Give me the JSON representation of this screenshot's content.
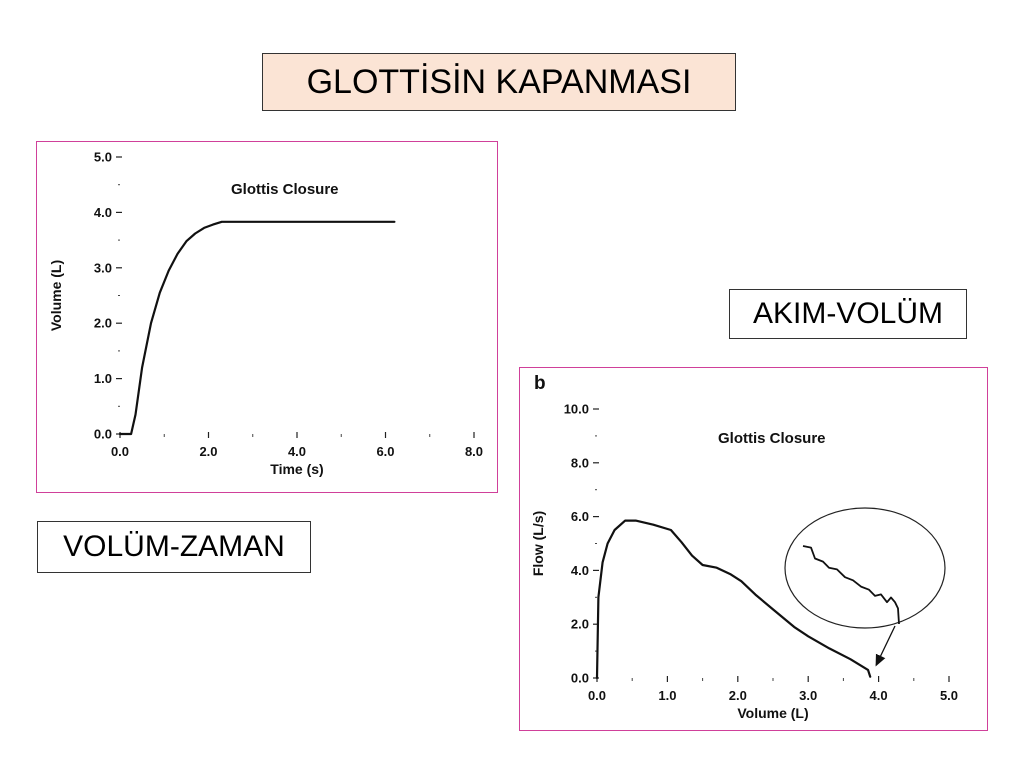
{
  "slide": {
    "title": "GLOTTİSİN KAPANMASI",
    "label_flow_volume": "AKIM-VOLÜM",
    "label_volume_time": "VOLÜM-ZAMAN"
  },
  "chart_data": [
    {
      "type": "line",
      "title": "Glottis Closure",
      "xlabel": "Time (s)",
      "ylabel": "Volume (L)",
      "xlim": [
        0,
        8
      ],
      "ylim": [
        0,
        5
      ],
      "x_ticks": [
        "0.0",
        "2.0",
        "4.0",
        "6.0",
        "8.0"
      ],
      "y_ticks": [
        "0.0",
        "1.0",
        "2.0",
        "3.0",
        "4.0",
        "5.0"
      ],
      "series": [
        {
          "points": [
            [
              0.0,
              0.0
            ],
            [
              0.25,
              0.0
            ],
            [
              0.35,
              0.35
            ],
            [
              0.5,
              1.2
            ],
            [
              0.7,
              2.0
            ],
            [
              0.9,
              2.55
            ],
            [
              1.1,
              2.95
            ],
            [
              1.3,
              3.25
            ],
            [
              1.5,
              3.48
            ],
            [
              1.7,
              3.62
            ],
            [
              1.9,
              3.72
            ],
            [
              2.1,
              3.78
            ],
            [
              2.3,
              3.83
            ],
            [
              2.5,
              3.83
            ],
            [
              4.0,
              3.83
            ],
            [
              6.2,
              3.83
            ]
          ]
        }
      ],
      "grid": false
    },
    {
      "type": "line",
      "panel_label": "b",
      "title": "Glottis Closure",
      "xlabel": "Volume (L)",
      "ylabel": "Flow (L/s)",
      "xlim": [
        0,
        5
      ],
      "ylim": [
        0,
        10
      ],
      "x_ticks": [
        "0.0",
        "1.0",
        "2.0",
        "3.0",
        "4.0",
        "5.0"
      ],
      "y_ticks": [
        "0.0",
        "2.0",
        "4.0",
        "6.0",
        "8.0",
        "10.0"
      ],
      "series": [
        {
          "points": [
            [
              0.0,
              0.0
            ],
            [
              0.02,
              3.0
            ],
            [
              0.08,
              4.3
            ],
            [
              0.15,
              5.0
            ],
            [
              0.25,
              5.5
            ],
            [
              0.4,
              5.85
            ],
            [
              0.55,
              5.85
            ],
            [
              0.8,
              5.7
            ],
            [
              1.05,
              5.5
            ],
            [
              1.2,
              5.05
            ],
            [
              1.35,
              4.55
            ],
            [
              1.5,
              4.2
            ],
            [
              1.7,
              4.1
            ],
            [
              1.9,
              3.85
            ],
            [
              2.05,
              3.6
            ],
            [
              2.25,
              3.1
            ],
            [
              2.5,
              2.55
            ],
            [
              2.8,
              1.9
            ],
            [
              3.0,
              1.55
            ],
            [
              3.3,
              1.1
            ],
            [
              3.6,
              0.7
            ],
            [
              3.85,
              0.3
            ],
            [
              3.88,
              0.05
            ]
          ]
        }
      ],
      "inset_trace": [
        [
          0.0,
          0.0
        ],
        [
          0.08,
          0.02
        ],
        [
          0.12,
          0.16
        ],
        [
          0.2,
          0.2
        ],
        [
          0.26,
          0.28
        ],
        [
          0.34,
          0.3
        ],
        [
          0.42,
          0.4
        ],
        [
          0.5,
          0.44
        ],
        [
          0.58,
          0.52
        ],
        [
          0.66,
          0.56
        ],
        [
          0.72,
          0.64
        ],
        [
          0.78,
          0.62
        ],
        [
          0.84,
          0.72
        ],
        [
          0.88,
          0.66
        ],
        [
          0.92,
          0.72
        ],
        [
          0.95,
          0.8
        ],
        [
          0.96,
          1.0
        ]
      ],
      "annotation": "zoom inset with arrow pointing to end of expiration",
      "grid": false
    }
  ]
}
